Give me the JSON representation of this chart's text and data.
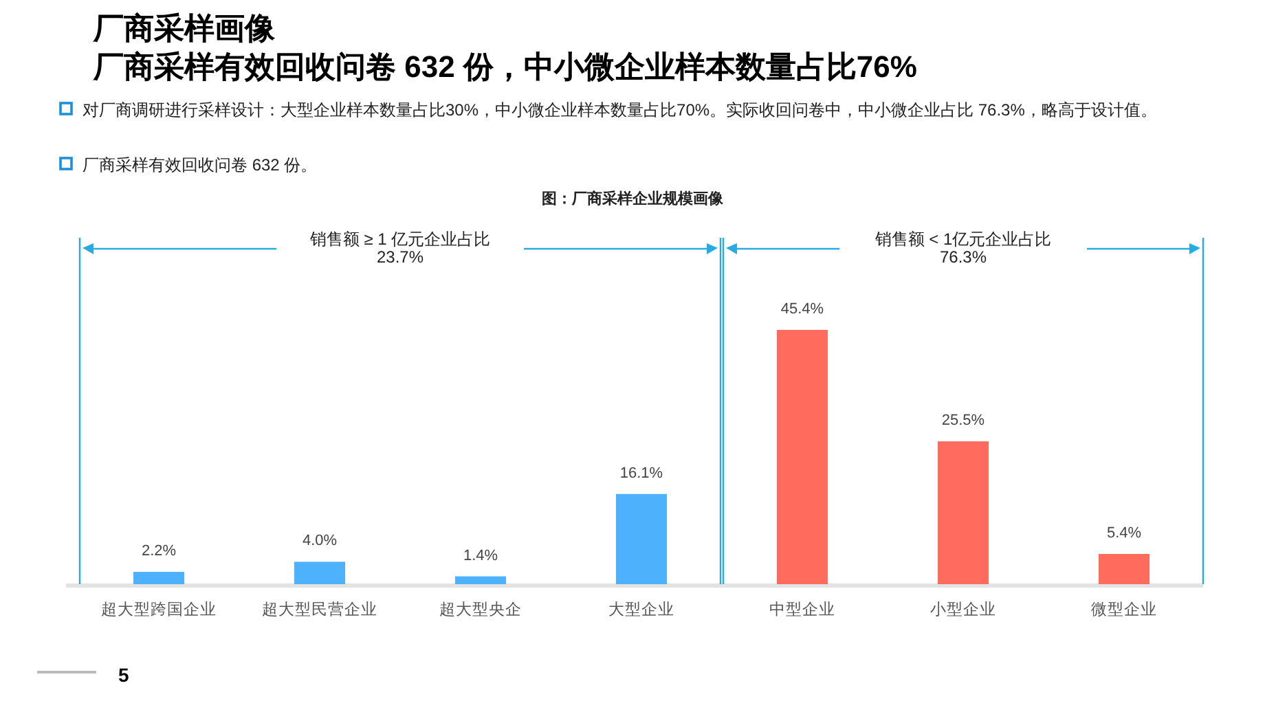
{
  "chart_data": {
    "type": "bar",
    "title": "厂商采样画像",
    "subtitle": "厂商采样有效回收问卷 632 份，中小微企业样本数量占比76%",
    "annotations": [
      "对厂商调研进行采样设计：大型企业样本数量占比30%，中小微企业样本数量占比70%。实际收回问卷中，中小微企业占比 76.3%，略高于设计值。",
      "厂商采样有效回收问卷 632 份。",
      "图：厂商采样企业规模画像",
      "5",
      "销售额 ≥ 1 亿元企业占比\n23.7%",
      "销售额 < 1亿元企业占比\n76.3%"
    ],
    "categories": [
      "超大型跨国企业",
      "超大型民营企业",
      "超大型央企",
      "大型企业",
      "中型企业",
      "小型企业",
      "微型企业"
    ],
    "values": [
      2.2,
      4.0,
      1.4,
      16.1,
      45.4,
      25.5,
      5.4
    ],
    "colors": [
      "#4db2fb",
      "#4db2fb",
      "#4db2fb",
      "#4db2fb",
      "#ff6b5c",
      "#ff6b5c",
      "#ff6b5c"
    ],
    "value_labels": [
      "2.2%",
      "4.0%",
      "1.4%",
      "16.1%",
      "45.4%",
      "25.5%",
      "5.4%"
    ]
  }
}
